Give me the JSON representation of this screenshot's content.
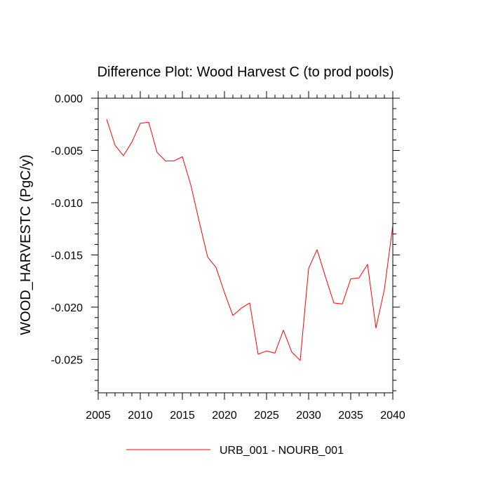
{
  "chart_data": {
    "type": "line",
    "title": "Difference Plot: Wood Harvest C (to prod pools)",
    "xlabel": "",
    "ylabel": "WOOD_HARVESTC  (PgC/y)",
    "xlim": [
      2005,
      2040
    ],
    "ylim": [
      -0.0282,
      0.0
    ],
    "x_ticks": [
      2005,
      2010,
      2015,
      2020,
      2025,
      2030,
      2035,
      2040
    ],
    "x_tick_labels": [
      "2005",
      "2010",
      "2015",
      "2020",
      "2025",
      "2030",
      "2035",
      "2040"
    ],
    "y_ticks": [
      0.0,
      -0.005,
      -0.01,
      -0.015,
      -0.02,
      -0.025
    ],
    "y_tick_labels": [
      "0.000",
      "-0.005",
      "-0.010",
      "-0.015",
      "-0.020",
      "-0.025"
    ],
    "grid": false,
    "legend_position": "bottom",
    "series": [
      {
        "name": "URB_001 - NOURB_001",
        "color": "#ff0000",
        "x": [
          2006,
          2007,
          2008,
          2009,
          2010,
          2011,
          2012,
          2013,
          2014,
          2015,
          2016,
          2017,
          2018,
          2019,
          2020,
          2021,
          2022,
          2023,
          2024,
          2025,
          2026,
          2027,
          2028,
          2029,
          2030,
          2031,
          2032,
          2033,
          2034,
          2035,
          2036,
          2037,
          2038,
          2039,
          2040
        ],
        "y": [
          -0.002,
          -0.0045,
          -0.0055,
          -0.0042,
          -0.0024,
          -0.0023,
          -0.0052,
          -0.006,
          -0.006,
          -0.0056,
          -0.0083,
          -0.0118,
          -0.0152,
          -0.0162,
          -0.0186,
          -0.0208,
          -0.0201,
          -0.0196,
          -0.0245,
          -0.0242,
          -0.0244,
          -0.0222,
          -0.0243,
          -0.0251,
          -0.0163,
          -0.0145,
          -0.0171,
          -0.0196,
          -0.0197,
          -0.0173,
          -0.0172,
          -0.0159,
          -0.022,
          -0.0183,
          -0.0122
        ]
      }
    ]
  }
}
